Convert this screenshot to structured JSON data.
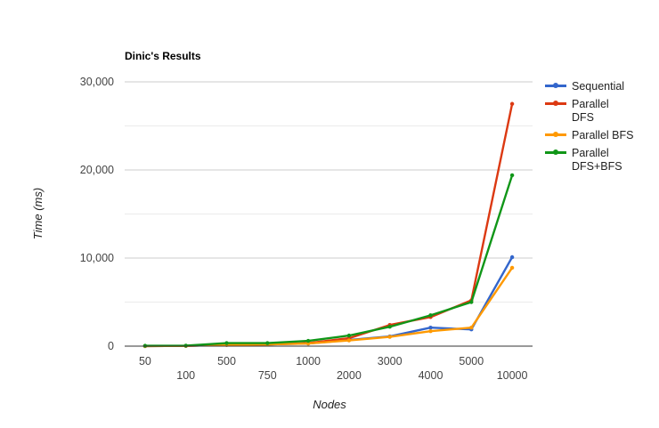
{
  "chart_data": {
    "type": "line",
    "title": "Dinic's Results",
    "xlabel": "Nodes",
    "ylabel": "Time (ms)",
    "categories": [
      "50",
      "100",
      "500",
      "750",
      "1000",
      "2000",
      "3000",
      "4000",
      "5000",
      "10000"
    ],
    "ylim": [
      0,
      30000
    ],
    "yticks": [
      0,
      10000,
      20000,
      30000
    ],
    "ytick_labels": [
      "0",
      "10,000",
      "20,000",
      "30,000"
    ],
    "grid": true,
    "legend": "right",
    "series": [
      {
        "name": "Sequential",
        "color": "#3366cc",
        "values": [
          10,
          30,
          150,
          200,
          300,
          700,
          1100,
          2100,
          1900,
          10100
        ]
      },
      {
        "name": "Parallel DFS",
        "color": "#dc3912",
        "values": [
          10,
          30,
          150,
          200,
          350,
          900,
          2400,
          3300,
          5200,
          27500
        ]
      },
      {
        "name": "Parallel BFS",
        "color": "#ff9900",
        "values": [
          10,
          30,
          150,
          200,
          300,
          650,
          1050,
          1700,
          2100,
          8900
        ]
      },
      {
        "name": "Parallel DFS+BFS",
        "color": "#109618",
        "values": [
          40,
          60,
          350,
          350,
          600,
          1200,
          2200,
          3500,
          5000,
          19400
        ]
      }
    ]
  }
}
